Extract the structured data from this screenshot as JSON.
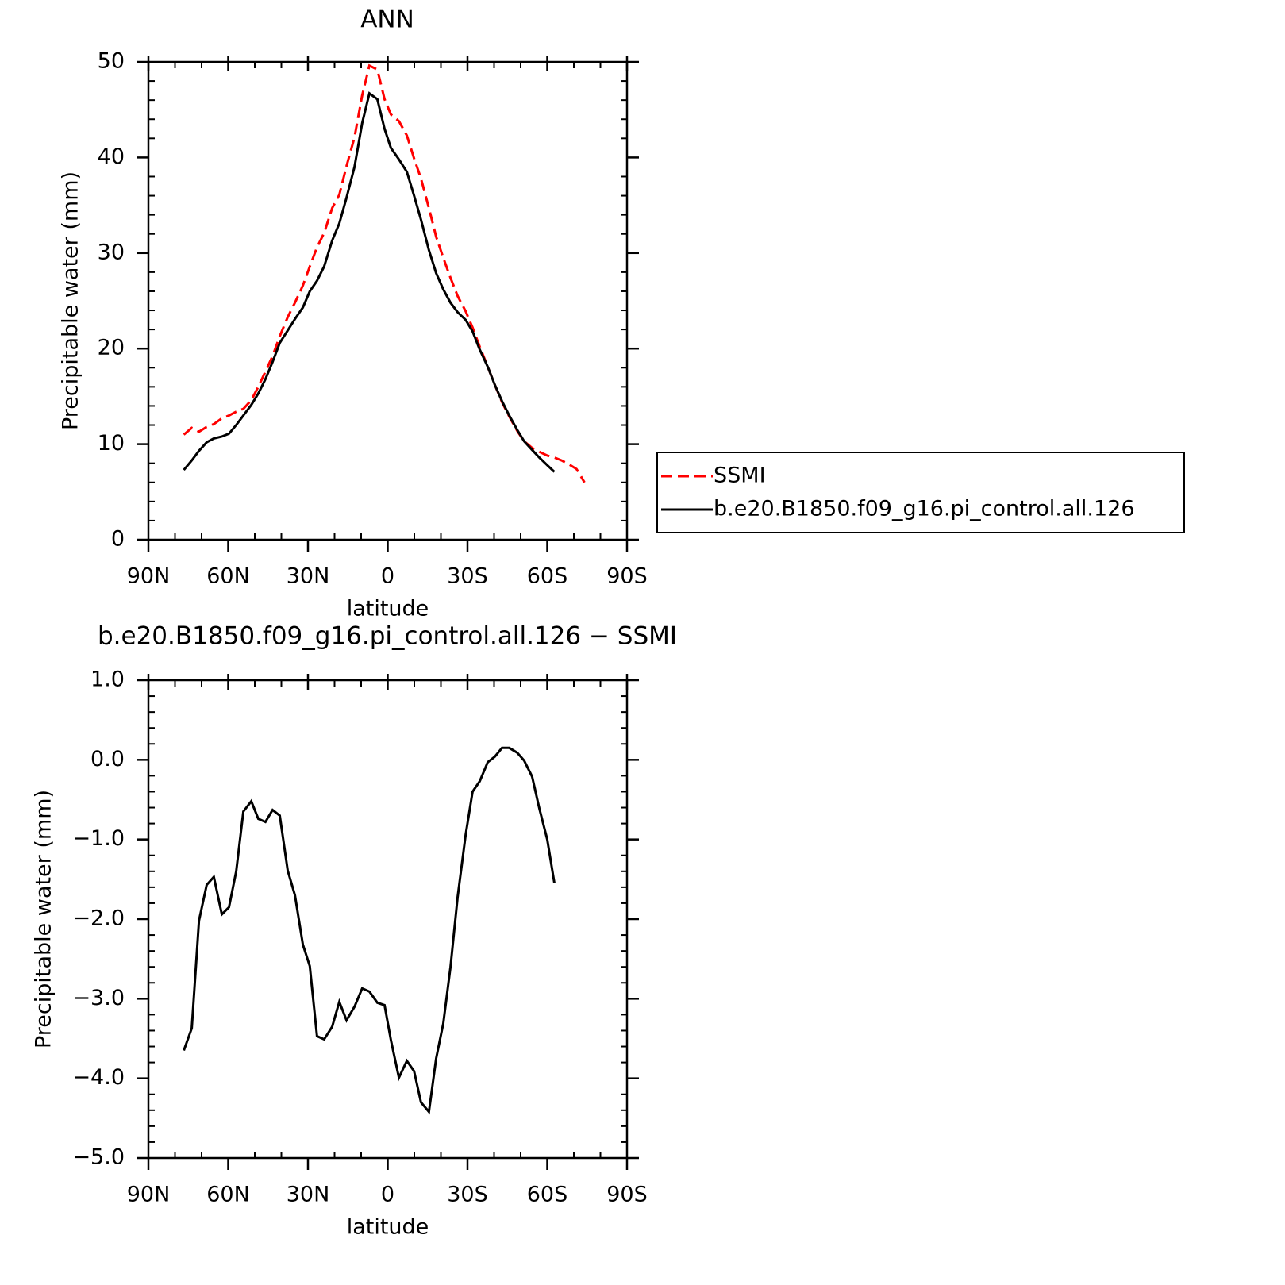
{
  "chart_data": [
    {
      "type": "line",
      "title": "ANN",
      "xlabel": "latitude",
      "ylabel": "Precipitable water (mm)",
      "x": [
        76.7,
        73.7,
        71.0,
        68.1,
        65.4,
        62.4,
        59.7,
        57.0,
        54.3,
        51.3,
        48.7,
        46.0,
        43.3,
        40.6,
        37.6,
        34.9,
        31.9,
        29.3,
        26.6,
        23.9,
        20.9,
        18.2,
        15.5,
        12.5,
        9.6,
        6.9,
        3.9,
        1.2,
        -1.2,
        -4.2,
        -7.2,
        -9.9,
        -12.5,
        -15.5,
        -18.2,
        -20.9,
        -23.6,
        -26.3,
        -29.3,
        -31.9,
        -34.6,
        -37.6,
        -40.3,
        -43.0,
        -45.7,
        -48.7,
        -51.3,
        -54.3,
        -57.0,
        -60.0,
        -62.7,
        -65.4,
        -68.1,
        -71.0,
        -74.0
      ],
      "series": [
        {
          "name": "SSMI",
          "color": "#ff0000",
          "dash": "dashed",
          "values": [
            11.0,
            11.7,
            11.3,
            11.8,
            12.1,
            12.7,
            13.0,
            13.4,
            13.7,
            14.6,
            16.0,
            17.6,
            19.2,
            21.3,
            23.3,
            24.8,
            26.6,
            28.6,
            30.6,
            32.1,
            34.7,
            36.1,
            39.1,
            42.1,
            46.5,
            49.6,
            49.2,
            46.1,
            44.5,
            43.8,
            42.3,
            39.9,
            37.8,
            34.7,
            31.7,
            29.5,
            27.4,
            25.5,
            23.9,
            22.2,
            20.2,
            18.1,
            16.2,
            14.4,
            12.9,
            11.4,
            10.3,
            9.6,
            9.2,
            8.8,
            8.6,
            8.3,
            7.9,
            7.4,
            6.0
          ]
        },
        {
          "name": "b.e20.B1850.f09_g16.pi_control.all.126",
          "color": "#000000",
          "dash": "solid",
          "values": [
            7.3,
            8.3,
            9.3,
            10.2,
            10.6,
            10.8,
            11.1,
            12.0,
            13.0,
            14.1,
            15.3,
            16.8,
            18.6,
            20.6,
            21.9,
            23.1,
            24.3,
            26.0,
            27.1,
            28.6,
            31.3,
            33.1,
            35.8,
            39.0,
            43.6,
            46.7,
            46.1,
            43.0,
            41.0,
            39.8,
            38.5,
            36.0,
            33.5,
            30.3,
            27.9,
            26.2,
            24.8,
            23.8,
            23.0,
            21.8,
            19.9,
            18.1,
            16.2,
            14.5,
            13.0,
            11.5,
            10.3,
            9.4,
            8.6,
            7.8,
            7.1,
            null,
            null,
            null,
            null
          ]
        }
      ],
      "xlim": [
        90,
        -90
      ],
      "xticks": [
        {
          "value": 90,
          "label": "90N"
        },
        {
          "value": 60,
          "label": "60N"
        },
        {
          "value": 30,
          "label": "30N"
        },
        0,
        {
          "value": -30,
          "label": "30S"
        },
        {
          "value": -60,
          "label": "60S"
        },
        {
          "value": -90,
          "label": "90S"
        }
      ],
      "ylim": [
        0,
        50
      ],
      "yticks": [
        0,
        10,
        20,
        30,
        40,
        50
      ],
      "legend": "right"
    },
    {
      "type": "line",
      "title": "b.e20.B1850.f09_g16.pi_control.all.126 − SSMI",
      "xlabel": "latitude",
      "ylabel": "Precipitable water (mm)",
      "x": [
        76.7,
        73.7,
        71.0,
        68.1,
        65.4,
        62.4,
        59.7,
        57.0,
        54.3,
        51.3,
        48.7,
        46.0,
        43.3,
        40.6,
        37.6,
        34.9,
        31.9,
        29.3,
        26.6,
        23.9,
        20.9,
        18.2,
        15.5,
        12.5,
        9.6,
        6.9,
        3.9,
        1.2,
        -1.2,
        -4.2,
        -7.2,
        -9.9,
        -12.5,
        -15.5,
        -18.2,
        -20.9,
        -23.6,
        -26.3,
        -29.3,
        -31.9,
        -34.6,
        -37.6,
        -40.3,
        -43.0,
        -45.7,
        -48.7,
        -51.3,
        -54.3,
        -57.0,
        -60.0,
        -62.7
      ],
      "series": [
        {
          "color": "#000000",
          "dash": "solid",
          "values": [
            -3.65,
            -3.37,
            -2.02,
            -1.57,
            -1.47,
            -1.94,
            -1.85,
            -1.4,
            -0.65,
            -0.52,
            -0.74,
            -0.78,
            -0.63,
            -0.7,
            -1.39,
            -1.7,
            -2.32,
            -2.59,
            -3.47,
            -3.51,
            -3.35,
            -3.04,
            -3.27,
            -3.1,
            -2.87,
            -2.91,
            -3.05,
            -3.08,
            -3.52,
            -3.99,
            -3.78,
            -3.91,
            -4.3,
            -4.42,
            -3.75,
            -3.31,
            -2.6,
            -1.72,
            -0.94,
            -0.4,
            -0.27,
            -0.03,
            0.04,
            0.15,
            0.15,
            0.09,
            -0.01,
            -0.21,
            -0.61,
            -1.0,
            -1.55
          ]
        }
      ],
      "xlim": [
        90,
        -90
      ],
      "xticks": [
        {
          "value": 90,
          "label": "90N"
        },
        {
          "value": 60,
          "label": "60N"
        },
        {
          "value": 30,
          "label": "30N"
        },
        0,
        {
          "value": -30,
          "label": "30S"
        },
        {
          "value": -60,
          "label": "60S"
        },
        {
          "value": -90,
          "label": "90S"
        }
      ],
      "ylim": [
        -5,
        1
      ],
      "yticks": [
        {
          "value": -5,
          "label": "−5.0"
        },
        {
          "value": -4,
          "label": "−4.0"
        },
        {
          "value": -3,
          "label": "−3.0"
        },
        {
          "value": -2,
          "label": "−2.0"
        },
        {
          "value": -1,
          "label": "−1.0"
        },
        {
          "value": 0,
          "label": "0.0"
        },
        {
          "value": 1,
          "label": "1.0"
        }
      ]
    }
  ]
}
